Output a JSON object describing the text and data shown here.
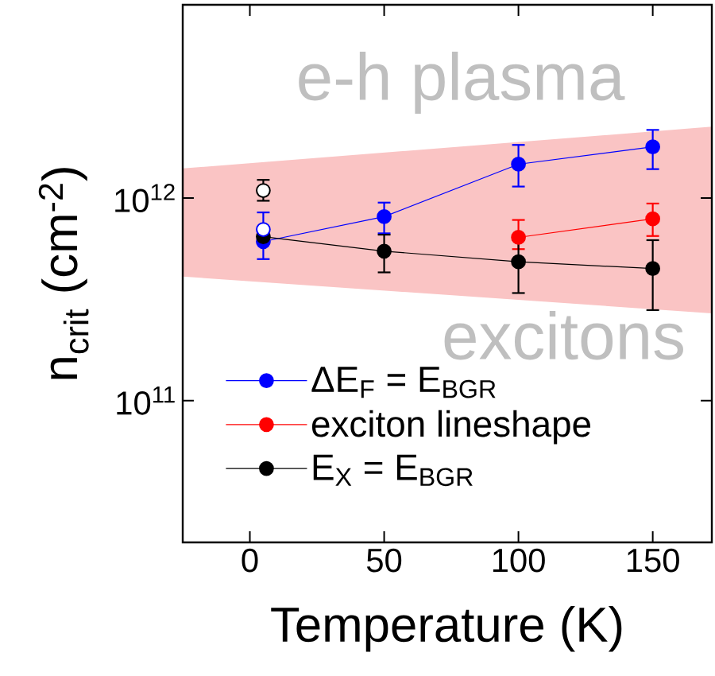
{
  "chart_data": {
    "type": "line",
    "xlabel": "Temperature (K)",
    "ylabel": "n$_{crit}$ (cm$^{-2}$)",
    "xlim": [
      -25,
      172
    ],
    "xticks": [
      0,
      50,
      100,
      150
    ],
    "ylim": [
      20000000000.0,
      9000000000000.0
    ],
    "yticks": [
      {
        "value": 100000000000.0,
        "label": "10$^{11}$"
      },
      {
        "value": 1000000000000.0,
        "label": "10$^{12}$"
      }
    ],
    "log": "y",
    "legend": "bottom left",
    "marker": "circle",
    "grid": false,
    "series": [
      {
        "type": "area",
        "color": "#fac4c4",
        "x": [
          -25,
          172
        ],
        "values": [
          null,
          null
        ],
        "lower": [
          410000000000.0,
          270000000000.0
        ],
        "upper": [
          1400000000000.0,
          2250000000000.0
        ]
      },
      {
        "name": "ΔE$_{F}$ = E$_{BGR}$",
        "color": "#0000ff",
        "x": [
          5,
          50,
          100,
          150
        ],
        "values": [
          610000000000.0,
          810000000000.0,
          1470000000000.0,
          1790000000000.0
        ],
        "errors": [
          [
            500000000000.0,
            850000000000.0
          ],
          [
            670000000000.0,
            950000000000.0
          ],
          [
            1140000000000.0,
            1830000000000.0
          ],
          [
            1390000000000.0,
            2170000000000.0
          ]
        ]
      },
      {
        "name": "exciton lineshape",
        "color": "#ff0000",
        "x": [
          100,
          150
        ],
        "values": [
          640000000000.0,
          790000000000.0
        ],
        "errors": [
          [
            560000000000.0,
            780000000000.0
          ],
          [
            650000000000.0,
            940000000000.0
          ]
        ]
      },
      {
        "name": "E$_{X}$ = E$_{BGR}$",
        "color": "#000000",
        "x": [
          5,
          50,
          100,
          150
        ],
        "values": [
          645000000000.0,
          547000000000.0,
          485000000000.0,
          449000000000.0
        ],
        "errors": [
          null,
          [
            430000000000.0,
            660000000000.0
          ],
          [
            340000000000.0,
            620000000000.0
          ],
          [
            280000000000.0,
            620000000000.0
          ]
        ]
      },
      {
        "type": "scatter",
        "color": "#000000",
        "x": [
          5
        ],
        "values": [
          1090000000000.0
        ],
        "errors": [
          [
            970000000000.0,
            1230000000000.0
          ]
        ]
      },
      {
        "type": "scatter",
        "color": "#0000ff",
        "x": [
          5
        ],
        "values": [
          700000000000.0
        ]
      }
    ],
    "annotations": [
      "e-h plasma",
      "excitons"
    ]
  }
}
